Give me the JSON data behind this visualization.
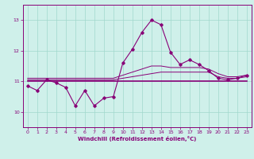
{
  "title": "",
  "xlabel": "Windchill (Refroidissement éolien,°C)",
  "ylabel": "",
  "background_color": "#cff0ea",
  "grid_color": "#a0d8cc",
  "line_color": "#880077",
  "xlim": [
    -0.5,
    23.5
  ],
  "ylim": [
    9.5,
    13.5
  ],
  "yticks": [
    10,
    11,
    12,
    13
  ],
  "xticks": [
    0,
    1,
    2,
    3,
    4,
    5,
    6,
    7,
    8,
    9,
    10,
    11,
    12,
    13,
    14,
    15,
    16,
    17,
    18,
    19,
    20,
    21,
    22,
    23
  ],
  "hours": [
    0,
    1,
    2,
    3,
    4,
    5,
    6,
    7,
    8,
    9,
    10,
    11,
    12,
    13,
    14,
    15,
    16,
    17,
    18,
    19,
    20,
    21,
    22,
    23
  ],
  "windchill": [
    10.85,
    10.7,
    11.05,
    10.95,
    10.8,
    10.2,
    10.7,
    10.2,
    10.45,
    10.5,
    11.6,
    12.05,
    12.6,
    13.0,
    12.85,
    11.95,
    11.55,
    11.7,
    11.55,
    11.35,
    11.1,
    11.05,
    11.1,
    11.2
  ],
  "flat_line_y": 11.0,
  "trend1": [
    11.05,
    11.05,
    11.05,
    11.05,
    11.05,
    11.05,
    11.05,
    11.05,
    11.05,
    11.05,
    11.1,
    11.15,
    11.2,
    11.25,
    11.3,
    11.3,
    11.3,
    11.3,
    11.3,
    11.3,
    11.15,
    11.1,
    11.1,
    11.15
  ],
  "trend2": [
    11.1,
    11.1,
    11.1,
    11.1,
    11.1,
    11.1,
    11.1,
    11.1,
    11.1,
    11.1,
    11.2,
    11.3,
    11.4,
    11.5,
    11.5,
    11.45,
    11.45,
    11.45,
    11.45,
    11.4,
    11.25,
    11.15,
    11.15,
    11.2
  ]
}
